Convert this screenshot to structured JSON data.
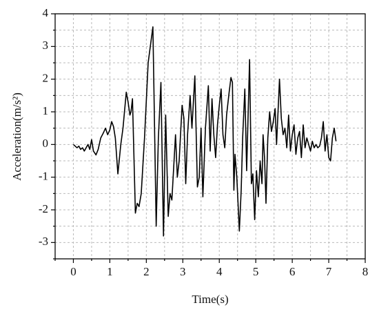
{
  "chart_data": {
    "type": "line",
    "x_label": "Time(s)",
    "y_label": "Acceleration(m/s²)",
    "x": [
      0,
      0.05,
      0.1,
      0.15,
      0.2,
      0.25,
      0.3,
      0.35,
      0.4,
      0.45,
      0.5,
      0.55,
      0.62,
      0.68,
      0.75,
      0.82,
      0.88,
      0.94,
      1.0,
      1.05,
      1.1,
      1.15,
      1.22,
      1.3,
      1.36,
      1.45,
      1.5,
      1.55,
      1.58,
      1.62,
      1.7,
      1.75,
      1.8,
      1.86,
      1.95,
      2.05,
      2.18,
      2.27,
      2.33,
      2.4,
      2.47,
      2.53,
      2.6,
      2.65,
      2.7,
      2.8,
      2.85,
      2.9,
      2.98,
      3.03,
      3.08,
      3.13,
      3.2,
      3.25,
      3.33,
      3.4,
      3.45,
      3.5,
      3.55,
      3.62,
      3.7,
      3.75,
      3.8,
      3.85,
      3.9,
      3.95,
      4.0,
      4.05,
      4.1,
      4.15,
      4.2,
      4.27,
      4.32,
      4.36,
      4.4,
      4.43,
      4.48,
      4.55,
      4.6,
      4.64,
      4.7,
      4.75,
      4.83,
      4.88,
      4.92,
      4.97,
      5.02,
      5.07,
      5.12,
      5.17,
      5.2,
      5.24,
      5.28,
      5.33,
      5.38,
      5.43,
      5.48,
      5.53,
      5.57,
      5.65,
      5.7,
      5.75,
      5.8,
      5.85,
      5.9,
      5.95,
      6.0,
      6.05,
      6.1,
      6.15,
      6.2,
      6.25,
      6.3,
      6.35,
      6.4,
      6.45,
      6.5,
      6.55,
      6.6,
      6.65,
      6.7,
      6.75,
      6.8,
      6.85,
      6.9,
      6.95,
      7.0,
      7.05,
      7.1,
      7.15,
      7.2
    ],
    "values": [
      0,
      -0.05,
      -0.1,
      -0.05,
      -0.15,
      -0.1,
      -0.2,
      -0.1,
      0.0,
      -0.15,
      0.15,
      -0.2,
      -0.32,
      -0.15,
      0.2,
      0.35,
      0.5,
      0.3,
      0.45,
      0.7,
      0.55,
      0.2,
      -0.9,
      0.0,
      0.5,
      1.6,
      1.3,
      0.9,
      1.0,
      1.4,
      -2.1,
      -1.8,
      -1.9,
      -1.5,
      0.2,
      2.5,
      3.6,
      -2.5,
      0.2,
      1.9,
      -2.8,
      0.9,
      -2.2,
      -1.5,
      -1.7,
      0.3,
      -1.0,
      -0.5,
      1.2,
      0.8,
      -1.2,
      0.3,
      1.5,
      0.5,
      2.1,
      -1.3,
      -1.0,
      0.5,
      -1.6,
      0.5,
      1.8,
      -0.2,
      1.4,
      0.3,
      -0.4,
      0.6,
      1.2,
      1.7,
      0.3,
      -0.1,
      0.9,
      1.6,
      2.05,
      1.9,
      -1.4,
      -0.3,
      -1.0,
      -2.65,
      -1.4,
      0.2,
      1.7,
      -0.8,
      2.6,
      -1.2,
      -0.9,
      -2.3,
      -0.8,
      -1.6,
      -0.5,
      -1.2,
      0.3,
      -0.4,
      -1.8,
      0.2,
      1.0,
      0.4,
      0.7,
      1.1,
      0.0,
      2.0,
      0.8,
      0.3,
      0.5,
      -0.1,
      0.9,
      -0.2,
      0.3,
      0.6,
      -0.3,
      0.2,
      0.4,
      -0.4,
      0.6,
      -0.1,
      0.2,
      0.0,
      -0.2,
      0.1,
      -0.1,
      0.0,
      -0.1,
      -0.05,
      0.2,
      0.7,
      -0.2,
      0.3,
      -0.4,
      -0.5,
      0.2,
      0.5,
      0.1
    ],
    "color": "#000000",
    "xlim": [
      -0.5,
      8
    ],
    "ylim": [
      -3.5,
      4
    ],
    "xticks": [
      0,
      1,
      2,
      3,
      4,
      5,
      6,
      7,
      8
    ],
    "yticks": [
      -3,
      -2,
      -1,
      0,
      1,
      2,
      3,
      4
    ],
    "xminorticks": [
      -0.5,
      0.5,
      1.5,
      2.5,
      3.5,
      4.5,
      5.5,
      6.5,
      7.5
    ],
    "yminorticks": [
      -3.5,
      -2.5,
      -1.5,
      -0.5,
      0.5,
      1.5,
      2.5,
      3.5
    ],
    "grid": true
  }
}
